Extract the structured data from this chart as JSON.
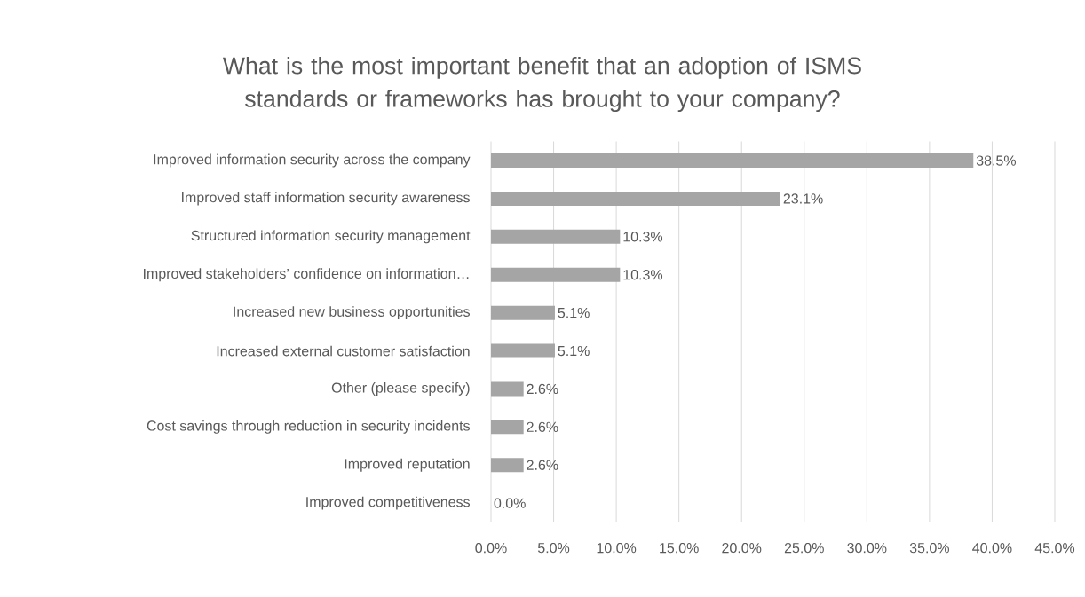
{
  "chart_data": {
    "type": "bar",
    "orientation": "horizontal",
    "title": "What is the most important benefit that an adoption of ISMS standards or frameworks has brought to your company?",
    "categories": [
      "Improved information security across the company",
      "Improved staff information security awareness",
      "Structured information security management",
      "Improved stakeholders’ confidence on information…",
      "Increased new business opportunities",
      "Increased external customer satisfaction",
      "Other (please specify)",
      "Cost savings through reduction in security incidents",
      "Improved reputation",
      "Improved competitiveness"
    ],
    "values": [
      38.5,
      23.1,
      10.3,
      10.3,
      5.1,
      5.1,
      2.6,
      2.6,
      2.6,
      0.0
    ],
    "value_labels": [
      "38.5%",
      "23.1%",
      "10.3%",
      "10.3%",
      "5.1%",
      "5.1%",
      "2.6%",
      "2.6%",
      "2.6%",
      "0.0%"
    ],
    "color": "#a5a5a5",
    "xlim": [
      0,
      45
    ],
    "xticks": [
      {
        "value": 0,
        "label": "0.0%"
      },
      {
        "value": 5,
        "label": "5.0%"
      },
      {
        "value": 10,
        "label": "10.0%"
      },
      {
        "value": 15,
        "label": "15.0%"
      },
      {
        "value": 20,
        "label": "20.0%"
      },
      {
        "value": 25,
        "label": "25.0%"
      },
      {
        "value": 30,
        "label": "30.0%"
      },
      {
        "value": 35,
        "label": "35.0%"
      },
      {
        "value": 40,
        "label": "40.0%"
      },
      {
        "value": 45,
        "label": "45.0%"
      }
    ],
    "grid": "x"
  }
}
